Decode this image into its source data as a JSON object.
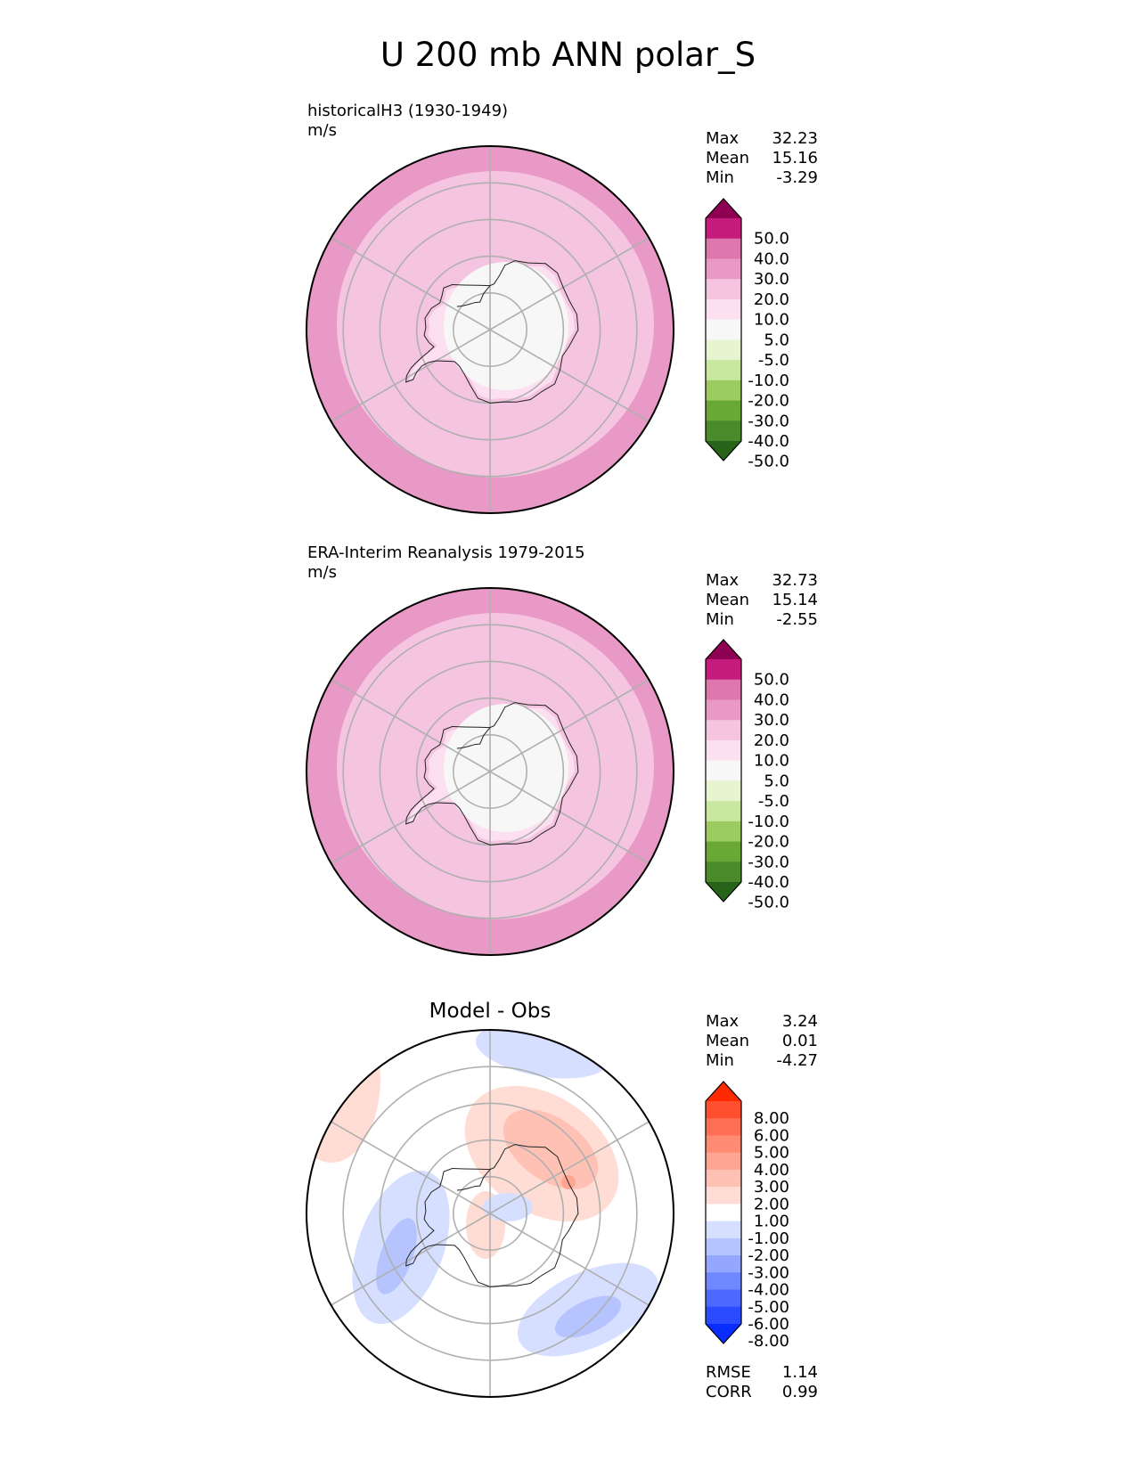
{
  "title": "U 200 mb ANN polar_S",
  "chart_data": [
    {
      "type": "heatmap",
      "panel": "test",
      "title": "historicalH3 (1930-1949)",
      "units": "m/s",
      "projection": "polar stereographic south",
      "stats": [
        {
          "label": "Max",
          "value": "32.23"
        },
        {
          "label": "Mean",
          "value": "15.16"
        },
        {
          "label": "Min",
          "value": "-3.29"
        }
      ],
      "colorbar": {
        "levels": [
          "50.0",
          "40.0",
          "30.0",
          "20.0",
          "10.0",
          "5.0",
          "-5.0",
          "-10.0",
          "-20.0",
          "-30.0",
          "-40.0",
          "-50.0"
        ],
        "colors": [
          "#8e0152",
          "#c51b7d",
          "#de77ae",
          "#e899c5",
          "#f4c4e0",
          "#fde0ef",
          "#f7f7f7",
          "#e6f5d0",
          "#c8e8a0",
          "#9ccc60",
          "#6aa835",
          "#4a8a2a",
          "#276419"
        ],
        "extend": "both"
      },
      "field": {
        "lat_bands_south_to_north": [
          {
            "band": "-90 to -80",
            "value_range": "-5 to 5"
          },
          {
            "band": "-80 to -70",
            "value_range": "5 to 10"
          },
          {
            "band": "-70 to -60",
            "value_range": "10 to 20"
          },
          {
            "band": "-60 to -50",
            "value_range": "10 to 20"
          },
          {
            "band": "-50 to -40",
            "value_range": "20 to 30"
          }
        ]
      }
    },
    {
      "type": "heatmap",
      "panel": "reference",
      "title": "ERA-Interim Reanalysis 1979-2015",
      "units": "m/s",
      "projection": "polar stereographic south",
      "stats": [
        {
          "label": "Max",
          "value": "32.73"
        },
        {
          "label": "Mean",
          "value": "15.14"
        },
        {
          "label": "Min",
          "value": "-2.55"
        }
      ],
      "colorbar": {
        "levels": [
          "50.0",
          "40.0",
          "30.0",
          "20.0",
          "10.0",
          "5.0",
          "-5.0",
          "-10.0",
          "-20.0",
          "-30.0",
          "-40.0",
          "-50.0"
        ],
        "colors": [
          "#8e0152",
          "#c51b7d",
          "#de77ae",
          "#e899c5",
          "#f4c4e0",
          "#fde0ef",
          "#f7f7f7",
          "#e6f5d0",
          "#c8e8a0",
          "#9ccc60",
          "#6aa835",
          "#4a8a2a",
          "#276419"
        ],
        "extend": "both"
      },
      "field": {
        "lat_bands_south_to_north": [
          {
            "band": "-90 to -80",
            "value_range": "-5 to 5"
          },
          {
            "band": "-80 to -70",
            "value_range": "5 to 10"
          },
          {
            "band": "-70 to -60",
            "value_range": "10 to 20"
          },
          {
            "band": "-60 to -50",
            "value_range": "10 to 20"
          },
          {
            "band": "-50 to -40",
            "value_range": "20 to 30"
          }
        ]
      }
    },
    {
      "type": "heatmap",
      "panel": "difference",
      "title": "Model - Obs",
      "units": "",
      "projection": "polar stereographic south",
      "stats": [
        {
          "label": "Max",
          "value": "3.24"
        },
        {
          "label": "Mean",
          "value": "0.01"
        },
        {
          "label": "Min",
          "value": "-4.27"
        }
      ],
      "metrics": [
        {
          "label": "RMSE",
          "value": "1.14"
        },
        {
          "label": "CORR",
          "value": "0.99"
        }
      ],
      "colorbar": {
        "levels": [
          "8.00",
          "6.00",
          "5.00",
          "4.00",
          "3.00",
          "2.00",
          "1.00",
          "-1.00",
          "-2.00",
          "-3.00",
          "-4.00",
          "-5.00",
          "-6.00",
          "-8.00"
        ],
        "colors": [
          "#ff2a00",
          "#ff4f2f",
          "#ff6f55",
          "#ff8b73",
          "#ffa693",
          "#ffc1b4",
          "#ffdcd4",
          "#ffffff",
          "#d6dfff",
          "#b5c3ff",
          "#94a6ff",
          "#7088ff",
          "#4c69ff",
          "#2a4bff",
          "#0a2dff"
        ],
        "extend": "both"
      },
      "field": {
        "features": [
          {
            "region": "East Antarctica, 0-90E, 65-80S",
            "value_range": "1 to 3"
          },
          {
            "region": "Amundsen-Bellingshausen Sea, 55-70S",
            "value_range": "-3 to -1"
          },
          {
            "region": "Southern Indian Ocean near 100E, 45-55S",
            "value_range": "-3 to -1"
          },
          {
            "region": "South Atlantic, 40-50S",
            "value_range": "1 to 2"
          }
        ]
      }
    }
  ]
}
